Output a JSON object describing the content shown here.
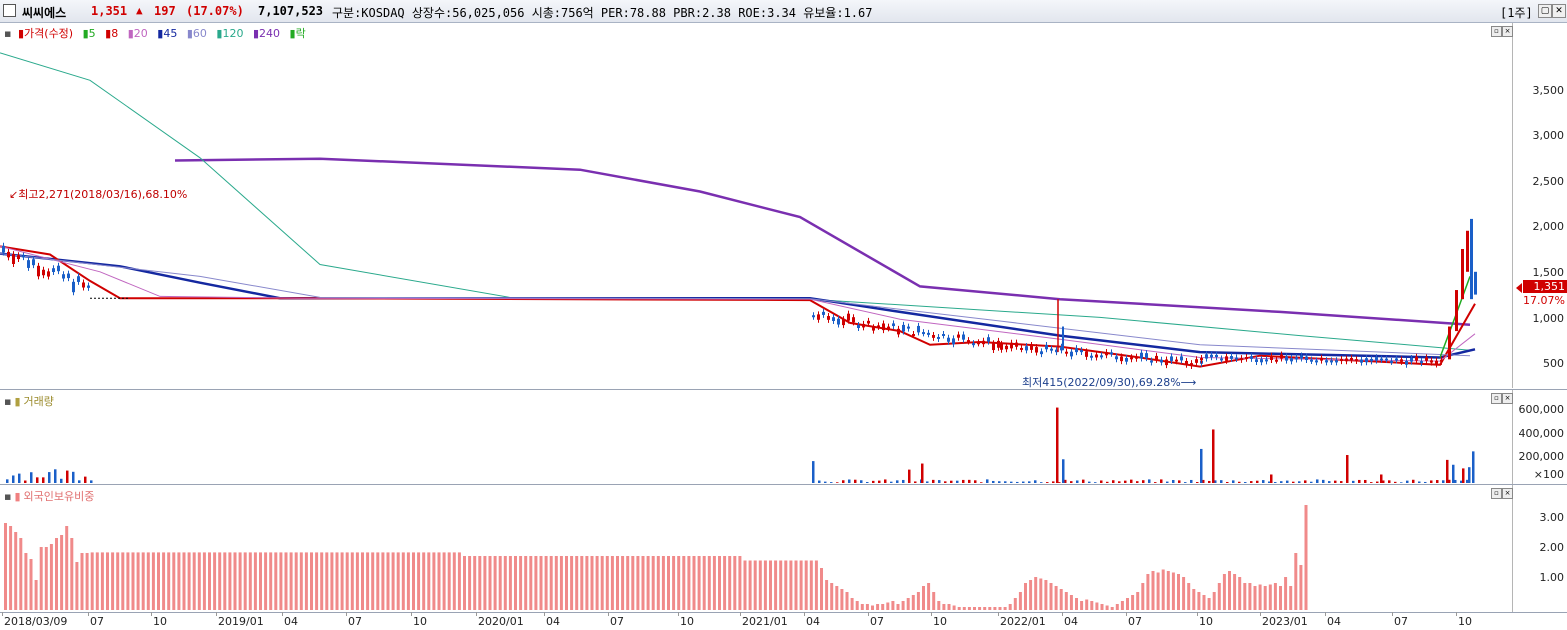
{
  "header": {
    "name": "씨씨에스",
    "price": "1,351",
    "arrow": "▲",
    "change": "197",
    "change_pct": "(17.07%)",
    "volume": "7,107,523",
    "info": "구분:KOSDAQ 상장수:56,025,056 시총:756억 PER:78.88 PBR:2.38 ROE:3.34 유보율:1.67",
    "period": "[1주]"
  },
  "price_pane": {
    "legend": [
      {
        "label": "가격(수정)",
        "color": "#d00000"
      },
      {
        "label": "5",
        "color": "#22aa22"
      },
      {
        "label": "8",
        "color": "#d00000"
      },
      {
        "label": "20",
        "color": "#c066c0"
      },
      {
        "label": "45",
        "color": "#1428a0"
      },
      {
        "label": "60",
        "color": "#8888cc"
      },
      {
        "label": "120",
        "color": "#2aa98c"
      },
      {
        "label": "240",
        "color": "#7a2fb0"
      },
      {
        "label": "락",
        "color": "#22aa22"
      }
    ],
    "y_ticks": [
      "3,500",
      "3,000",
      "2,500",
      "2,000",
      "1,500",
      "1,000",
      "500"
    ],
    "high_annotation": "최고2,271(2018/03/16),68.10%",
    "low_annotation": "최저415(2022/09/30),69.28%",
    "current_price": "1,351",
    "current_pct": "17.07%"
  },
  "volume_pane": {
    "legend": "거래량",
    "y_ticks": [
      "600,000",
      "400,000",
      "200,000",
      "×100"
    ]
  },
  "foreign_pane": {
    "legend": "외국인보유비중",
    "y_ticks": [
      "3.00",
      "2.00",
      "1.00"
    ]
  },
  "x_axis": [
    "2018/03/09",
    "07",
    "10",
    "2019/01",
    "04",
    "07",
    "10",
    "2020/01",
    "04",
    "07",
    "10",
    "2021/01",
    "04",
    "07",
    "10",
    "2022/01",
    "04",
    "07",
    "10",
    "2023/01",
    "04",
    "07",
    "10"
  ],
  "chart_data": {
    "type": "line",
    "title": "",
    "ylim": [
      350,
      4000
    ],
    "series": [
      {
        "name": "240",
        "values": [
          [
            175,
            2720
          ],
          [
            320,
            2740
          ],
          [
            580,
            2620
          ],
          [
            700,
            2380
          ],
          [
            800,
            2100
          ],
          [
            920,
            1340
          ],
          [
            1060,
            1200
          ],
          [
            1280,
            1060
          ],
          [
            1470,
            920
          ]
        ]
      },
      {
        "name": "120",
        "values": [
          [
            0,
            3900
          ],
          [
            90,
            3600
          ],
          [
            200,
            2750
          ],
          [
            320,
            1580
          ],
          [
            520,
            1200
          ],
          [
            810,
            1200
          ],
          [
            1100,
            1000
          ],
          [
            1300,
            800
          ],
          [
            1470,
            640
          ]
        ]
      },
      {
        "name": "45",
        "values": [
          [
            0,
            1700
          ],
          [
            120,
            1560
          ],
          [
            200,
            1380
          ],
          [
            280,
            1210
          ],
          [
            810,
            1210
          ],
          [
            900,
            1060
          ],
          [
            1060,
            800
          ],
          [
            1200,
            620
          ],
          [
            1440,
            560
          ],
          [
            1475,
            650
          ]
        ]
      },
      {
        "name": "8",
        "values": [
          [
            0,
            1780
          ],
          [
            50,
            1690
          ],
          [
            90,
            1400
          ],
          [
            120,
            1210
          ],
          [
            300,
            1210
          ],
          [
            810,
            1190
          ],
          [
            850,
            940
          ],
          [
            900,
            850
          ],
          [
            930,
            700
          ],
          [
            980,
            730
          ],
          [
            1060,
            680
          ],
          [
            1140,
            560
          ],
          [
            1200,
            460
          ],
          [
            1260,
            580
          ],
          [
            1440,
            480
          ],
          [
            1475,
            1150
          ]
        ]
      }
    ]
  }
}
